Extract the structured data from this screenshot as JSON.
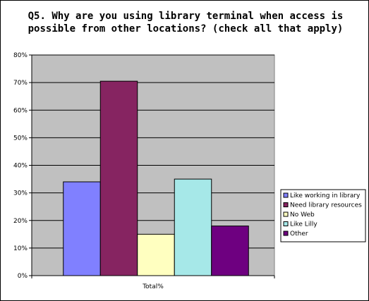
{
  "chart_data": {
    "type": "bar",
    "title": "Q5.  Why are you using library terminal when access is possible from other locations?  (check all that apply)",
    "title_lines": [
      "Q5.  Why are you using library terminal when access is",
      "possible from other locations?  (check all that apply)"
    ],
    "categories": [
      "Total%"
    ],
    "series": [
      {
        "name": "Like working in library",
        "values": [
          34
        ],
        "color": "#8080ff"
      },
      {
        "name": "Need library resources",
        "values": [
          70.5
        ],
        "color": "#862461"
      },
      {
        "name": "No Web",
        "values": [
          15
        ],
        "color": "#ffffc0"
      },
      {
        "name": "Like Lilly",
        "values": [
          35
        ],
        "color": "#a6e8e8"
      },
      {
        "name": "Other",
        "values": [
          18
        ],
        "color": "#6e0080"
      }
    ],
    "ylim": [
      0,
      80
    ],
    "yticks": [
      0,
      10,
      20,
      30,
      40,
      50,
      60,
      70,
      80
    ],
    "ytick_labels": [
      "0%",
      "10%",
      "20%",
      "30%",
      "40%",
      "50%",
      "60%",
      "70%",
      "80%"
    ],
    "plot_background": "#c0c0c0",
    "grid": true,
    "legend_position": "right"
  }
}
